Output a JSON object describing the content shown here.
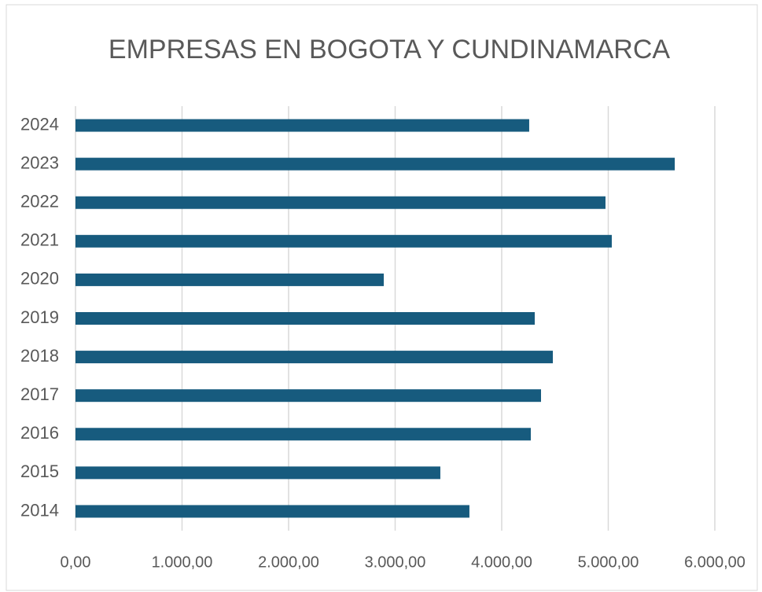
{
  "chart_data": {
    "type": "bar",
    "orientation": "horizontal",
    "title": "EMPRESAS EN BOGOTA Y CUNDINAMARCA",
    "categories": [
      "2014",
      "2015",
      "2016",
      "2017",
      "2018",
      "2019",
      "2020",
      "2021",
      "2022",
      "2023",
      "2024"
    ],
    "values": [
      3697,
      3424,
      4273,
      4369,
      4480,
      4310,
      2893,
      5033,
      4974,
      5624,
      4258
    ],
    "color": "#175b7e",
    "xlim": [
      0,
      6000
    ],
    "xticks": [
      {
        "value": 0,
        "label": "0,00"
      },
      {
        "value": 1000,
        "label": "1.000,00"
      },
      {
        "value": 2000,
        "label": "2.000,00"
      },
      {
        "value": 3000,
        "label": "3.000,00"
      },
      {
        "value": 4000,
        "label": "4.000,00"
      },
      {
        "value": 5000,
        "label": "5.000,00"
      },
      {
        "value": 6000,
        "label": "6.000,00"
      }
    ],
    "grid": true
  }
}
